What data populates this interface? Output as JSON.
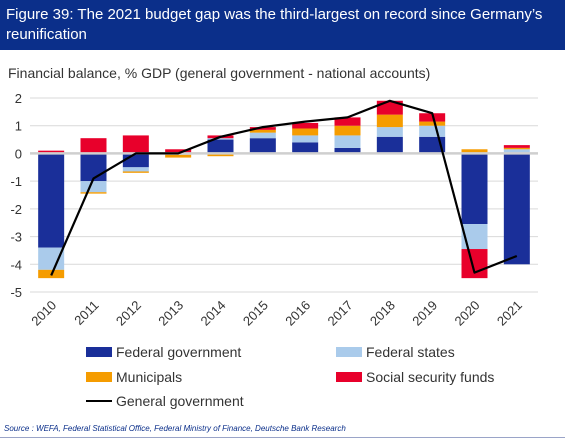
{
  "header": {
    "title": "Figure 39: The 2021 budget gap was the third-largest on record since Germany’s reunification"
  },
  "footer": {
    "source": "Source : WEFA, Federal Statistical Office, Federal Ministry of Finance, Deutsche Bank Research"
  },
  "chart_data": {
    "type": "bar",
    "title": "Financial balance, % GDP (general government - national accounts)",
    "stacked": true,
    "categories": [
      "2010",
      "2011",
      "2012",
      "2013",
      "2014",
      "2015",
      "2016",
      "2017",
      "2018",
      "2019",
      "2020",
      "2021"
    ],
    "ylim": [
      -5,
      2
    ],
    "yticks": [
      2,
      1,
      0,
      -1,
      -2,
      -3,
      -4,
      -5
    ],
    "grid": true,
    "legend_position": "bottom",
    "series": [
      {
        "name": "Federal government",
        "type": "bar",
        "color": "#1a2f99",
        "values": [
          -3.4,
          -1.0,
          -0.5,
          0.0,
          0.5,
          0.55,
          0.4,
          0.2,
          0.6,
          0.6,
          -2.55,
          -4.0
        ]
      },
      {
        "name": "Federal states",
        "type": "bar",
        "color": "#aacbeb",
        "values": [
          -0.8,
          -0.4,
          -0.15,
          -0.05,
          0.05,
          0.2,
          0.25,
          0.45,
          0.35,
          0.4,
          -0.9,
          0.15
        ]
      },
      {
        "name": "Municipals",
        "type": "bar",
        "color": "#f59c00",
        "values": [
          -0.3,
          -0.05,
          -0.05,
          -0.1,
          -0.1,
          0.1,
          0.25,
          0.35,
          0.45,
          0.15,
          0.15,
          0.05
        ]
      },
      {
        "name": "Social security funds",
        "type": "bar",
        "color": "#e8002b",
        "values": [
          0.1,
          0.55,
          0.65,
          0.15,
          0.1,
          0.1,
          0.2,
          0.3,
          0.5,
          0.3,
          -1.05,
          0.1
        ]
      },
      {
        "name": "General government",
        "type": "line",
        "color": "#000000",
        "values": [
          -4.4,
          -0.9,
          0.0,
          0.0,
          0.6,
          0.95,
          1.15,
          1.3,
          1.9,
          1.45,
          -4.3,
          -3.7
        ]
      }
    ]
  }
}
